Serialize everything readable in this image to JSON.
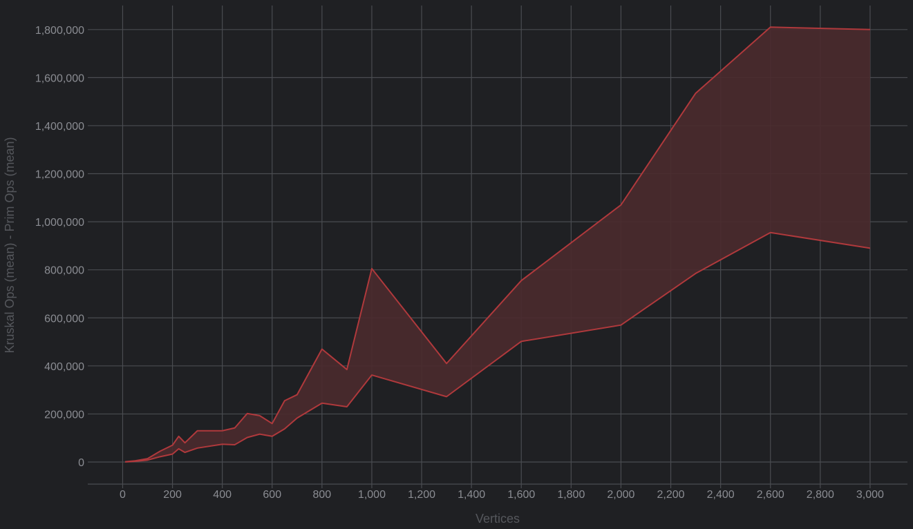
{
  "chart_data": {
    "type": "area",
    "xlabel": "Vertices",
    "ylabel": "Kruskal Ops (mean) - Prim Ops (mean)",
    "xlim": [
      -140,
      3150
    ],
    "ylim": [
      -92000,
      1900000
    ],
    "x_ticks": [
      0,
      200,
      400,
      600,
      800,
      1000,
      1200,
      1400,
      1600,
      1800,
      2000,
      2200,
      2400,
      2600,
      2800,
      3000
    ],
    "x_tick_labels": [
      "0",
      "200",
      "400",
      "600",
      "800",
      "1,000",
      "1,200",
      "1,400",
      "1,600",
      "1,800",
      "2,000",
      "2,200",
      "2,400",
      "2,600",
      "2,800",
      "3,000"
    ],
    "y_ticks": [
      0,
      200000,
      400000,
      600000,
      800000,
      1000000,
      1200000,
      1400000,
      1600000,
      1800000
    ],
    "y_tick_labels": [
      "0",
      "200,000",
      "400,000",
      "600,000",
      "800,000",
      "1,000,000",
      "1,200,000",
      "1,400,000",
      "1,600,000",
      "1,800,000"
    ],
    "grid": true,
    "band_color": "#4a2a2e",
    "line_color": "#b0393c",
    "x": [
      10,
      50,
      100,
      150,
      200,
      225,
      250,
      300,
      400,
      450,
      500,
      550,
      600,
      650,
      700,
      800,
      900,
      1000,
      1300,
      1600,
      2000,
      2300,
      2600,
      3000
    ],
    "series": [
      {
        "values": [
          1000,
          5000,
          14000,
          45000,
          70000,
          107000,
          80000,
          130000,
          130000,
          142000,
          202000,
          193000,
          160000,
          255000,
          280000,
          470000,
          385000,
          805000,
          410000,
          755000,
          1070000,
          1535000,
          1810000,
          1800000
        ]
      },
      {
        "values": [
          500,
          3000,
          8000,
          22000,
          33000,
          55000,
          40000,
          58000,
          74000,
          72000,
          102000,
          116000,
          107000,
          138000,
          183000,
          245000,
          230000,
          362000,
          272000,
          502000,
          570000,
          785000,
          955000,
          890000
        ]
      }
    ]
  }
}
